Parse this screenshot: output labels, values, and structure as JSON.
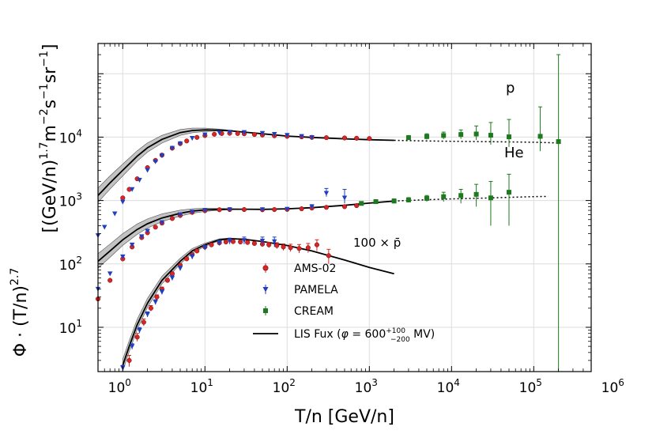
{
  "chart_data": {
    "type": "scatter",
    "x_scale": "log",
    "y_scale": "log",
    "xlim": [
      0.5,
      500000
    ],
    "ylim": [
      2,
      300000
    ],
    "x_tick_labels": [
      "10",
      "10",
      "10",
      "10",
      "10",
      "10",
      "10"
    ],
    "x_tick_exponents": [
      "0",
      "1",
      "2",
      "3",
      "4",
      "5",
      "6"
    ],
    "x_tick_values": [
      1,
      10,
      100,
      1000,
      10000,
      100000,
      1000000
    ],
    "y_tick_labels": [
      "10",
      "10",
      "10",
      "10"
    ],
    "y_tick_exponents": [
      "1",
      "2",
      "3",
      "4"
    ],
    "y_tick_values": [
      10,
      100,
      1000,
      10000
    ],
    "xlabel": "T/n   [GeV/n]",
    "ylabel_left": "Φ · (T/n)",
    "ylabel_left_exp": "2.7",
    "ylabel_right": "[(GeV/n)",
    "ylabel_right_exp1": "1.7",
    "ylabel_right_mid": "m",
    "ylabel_right_exp2": "−2",
    "ylabel_right_s": "s",
    "ylabel_right_exp3": "−1",
    "ylabel_right_sr": "sr",
    "ylabel_right_exp4": "−1",
    "ylabel_right_end": "]",
    "grid": true,
    "legend_position": "center-lower",
    "legend": [
      {
        "label": "AMS-02",
        "marker": "circle",
        "color": "#d62728"
      },
      {
        "label": "PAMELA",
        "marker": "triangle-down",
        "color": "#1f3fbf"
      },
      {
        "label": "CREAM",
        "marker": "square",
        "color": "#1e7a1e"
      },
      {
        "label_main": "LIS Fux (",
        "label_phi": "φ",
        "label_eq": " = 600",
        "label_sup": "+100",
        "label_sub": "−200",
        "label_end": " MV)",
        "marker": "line",
        "color": "#000000"
      }
    ],
    "series_labels": {
      "p": "p",
      "He": "He",
      "pbar_prefix": "100 × ",
      "pbar": "p̄"
    },
    "series": [
      {
        "name": "p LIS",
        "kind": "line",
        "x": [
          0.5,
          0.7,
          1,
          1.5,
          2,
          3,
          5,
          7,
          10,
          15,
          20,
          30,
          50,
          100,
          200,
          500,
          1000,
          2000
        ],
        "y": [
          1200,
          1900,
          3000,
          5000,
          6800,
          9200,
          11800,
          12700,
          13000,
          12900,
          12600,
          12000,
          11300,
          10400,
          9900,
          9400,
          9100,
          8900
        ]
      },
      {
        "name": "p LIS extrapolation",
        "kind": "dotted",
        "x": [
          2000,
          5000,
          10000,
          50000,
          100000,
          200000
        ],
        "y": [
          8900,
          8700,
          8600,
          8400,
          8300,
          8100
        ]
      },
      {
        "name": "He LIS",
        "kind": "line",
        "x": [
          0.5,
          0.7,
          1,
          1.5,
          2,
          3,
          5,
          7,
          10,
          15,
          20,
          30,
          50,
          100,
          200,
          500,
          1000,
          2000
        ],
        "y": [
          110,
          160,
          240,
          350,
          430,
          530,
          630,
          680,
          710,
          725,
          730,
          730,
          725,
          740,
          770,
          840,
          910,
          980
        ]
      },
      {
        "name": "He LIS extrapolation",
        "kind": "dotted",
        "x": [
          2000,
          5000,
          10000,
          30000,
          100000,
          150000
        ],
        "y": [
          980,
          1030,
          1060,
          1100,
          1150,
          1160
        ]
      },
      {
        "name": "pbar LIS",
        "kind": "line",
        "x": [
          1,
          1.2,
          1.5,
          2,
          3,
          5,
          7,
          10,
          15,
          20,
          30,
          50,
          100,
          200,
          500,
          1000,
          2000
        ],
        "y": [
          2.5,
          5,
          11,
          24,
          55,
          110,
          160,
          200,
          240,
          250,
          245,
          225,
          195,
          160,
          115,
          88,
          70
        ]
      },
      {
        "name": "p AMS-02",
        "kind": "points",
        "marker": "circle",
        "color": "#d62728",
        "x": [
          1,
          1.2,
          1.5,
          2,
          2.5,
          3,
          4,
          5,
          6,
          8,
          10,
          13,
          16,
          20,
          25,
          30,
          40,
          50,
          70,
          100,
          150,
          200,
          300,
          500,
          700,
          1000
        ],
        "y": [
          1100,
          1500,
          2200,
          3300,
          4300,
          5200,
          6700,
          7900,
          8700,
          9900,
          10600,
          11100,
          11400,
          11500,
          11400,
          11300,
          11000,
          10800,
          10500,
          10300,
          10100,
          9900,
          9800,
          9700,
          9600,
          9500
        ]
      },
      {
        "name": "p PAMELA",
        "kind": "points",
        "marker": "triangle-down",
        "color": "#1f3fbf",
        "x": [
          0.5,
          0.6,
          0.8,
          1,
          1.3,
          1.6,
          2,
          2.5,
          3,
          4,
          5,
          7,
          10,
          15,
          20,
          30,
          50,
          70,
          100,
          150,
          200
        ],
        "y": [
          280,
          380,
          620,
          950,
          1500,
          2100,
          3000,
          4100,
          5100,
          6700,
          7900,
          9600,
          10900,
          11700,
          12000,
          11900,
          11500,
          11100,
          10700,
          10300,
          9900
        ]
      },
      {
        "name": "p CREAM",
        "kind": "points",
        "marker": "square",
        "color": "#1e7a1e",
        "x": [
          3000,
          5000,
          8000,
          13000,
          20000,
          30000,
          50000,
          120000,
          200000
        ],
        "y": [
          9800,
          10200,
          10600,
          11000,
          11200,
          10700,
          10100,
          10300,
          8500
        ],
        "err_low": [
          9000,
          9200,
          9300,
          9400,
          9000,
          7600,
          7000,
          6000,
          2
        ],
        "err_high": [
          10600,
          11300,
          12000,
          13000,
          15000,
          17000,
          19000,
          30000,
          200000
        ]
      },
      {
        "name": "He AMS-02",
        "kind": "points",
        "marker": "circle",
        "color": "#d62728",
        "x": [
          0.5,
          0.7,
          1,
          1.3,
          1.7,
          2,
          2.5,
          3,
          4,
          5,
          7,
          10,
          15,
          20,
          30,
          50,
          70,
          100,
          150,
          200,
          300,
          500,
          700
        ],
        "y": [
          28,
          55,
          120,
          185,
          260,
          310,
          380,
          440,
          520,
          580,
          650,
          690,
          715,
          720,
          720,
          715,
          720,
          725,
          740,
          760,
          780,
          800,
          830
        ]
      },
      {
        "name": "He PAMELA",
        "kind": "points",
        "marker": "triangle-down",
        "color": "#1f3fbf",
        "x": [
          0.5,
          0.7,
          1,
          1.3,
          1.7,
          2,
          3,
          5,
          7,
          10,
          20,
          50,
          100,
          200,
          300,
          500
        ],
        "y": [
          40,
          70,
          130,
          200,
          270,
          330,
          450,
          600,
          660,
          700,
          720,
          720,
          730,
          800,
          1300,
          1100
        ],
        "err_low": [
          38,
          66,
          124,
          192,
          260,
          318,
          436,
          585,
          645,
          685,
          705,
          700,
          705,
          740,
          1150,
          900
        ],
        "err_high": [
          42,
          74,
          136,
          208,
          280,
          342,
          464,
          615,
          675,
          715,
          735,
          740,
          755,
          860,
          1550,
          1500
        ]
      },
      {
        "name": "He CREAM",
        "kind": "points",
        "marker": "square",
        "color": "#1e7a1e",
        "x": [
          800,
          1200,
          2000,
          3000,
          5000,
          8000,
          13000,
          20000,
          30000,
          50000
        ],
        "y": [
          900,
          960,
          980,
          1020,
          1080,
          1150,
          1200,
          1250,
          1100,
          1350
        ],
        "err_low": [
          840,
          890,
          900,
          930,
          960,
          960,
          900,
          800,
          400,
          400
        ],
        "err_high": [
          960,
          1030,
          1060,
          1110,
          1200,
          1350,
          1500,
          1800,
          2000,
          2600
        ]
      },
      {
        "name": "pbar AMS-02",
        "kind": "points",
        "marker": "circle",
        "color": "#d62728",
        "x": [
          1.2,
          1.5,
          1.8,
          2.2,
          2.6,
          3,
          3.5,
          4,
          5,
          6,
          7,
          8,
          10,
          12,
          15,
          18,
          22,
          27,
          33,
          40,
          50,
          60,
          75,
          90,
          110,
          140,
          180,
          230,
          320
        ],
        "y": [
          3,
          7,
          12,
          20,
          30,
          40,
          55,
          70,
          95,
          120,
          140,
          160,
          185,
          200,
          215,
          222,
          225,
          222,
          218,
          210,
          205,
          200,
          195,
          185,
          180,
          175,
          180,
          200,
          135
        ],
        "err_low": [
          2.4,
          6,
          10.5,
          18,
          27.5,
          37,
          51,
          66,
          90,
          114,
          133,
          152,
          176,
          190,
          204,
          210,
          212,
          208,
          203,
          194,
          188,
          181,
          174,
          163,
          156,
          148,
          150,
          160,
          100
        ],
        "err_high": [
          3.6,
          8,
          13.5,
          22,
          32.5,
          43,
          59,
          74,
          100,
          126,
          147,
          168,
          194,
          210,
          226,
          234,
          238,
          236,
          233,
          226,
          222,
          219,
          216,
          207,
          204,
          202,
          210,
          240,
          170
        ]
      },
      {
        "name": "pbar PAMELA",
        "kind": "points",
        "marker": "triangle-down",
        "color": "#1f3fbf",
        "x": [
          1,
          1.3,
          1.6,
          2,
          2.5,
          3,
          4,
          5,
          7,
          10,
          15,
          20,
          30,
          50,
          70
        ],
        "y": [
          2.3,
          5,
          9,
          16,
          25,
          36,
          60,
          85,
          130,
          180,
          215,
          230,
          235,
          230,
          225
        ],
        "err_low": [
          2.1,
          4.5,
          8.1,
          14.5,
          22.8,
          33,
          55,
          78,
          119,
          165,
          195,
          205,
          205,
          195,
          185
        ],
        "err_high": [
          2.5,
          5.5,
          9.9,
          17.5,
          27.2,
          39,
          65,
          92,
          141,
          195,
          235,
          255,
          265,
          265,
          265
        ]
      }
    ]
  }
}
